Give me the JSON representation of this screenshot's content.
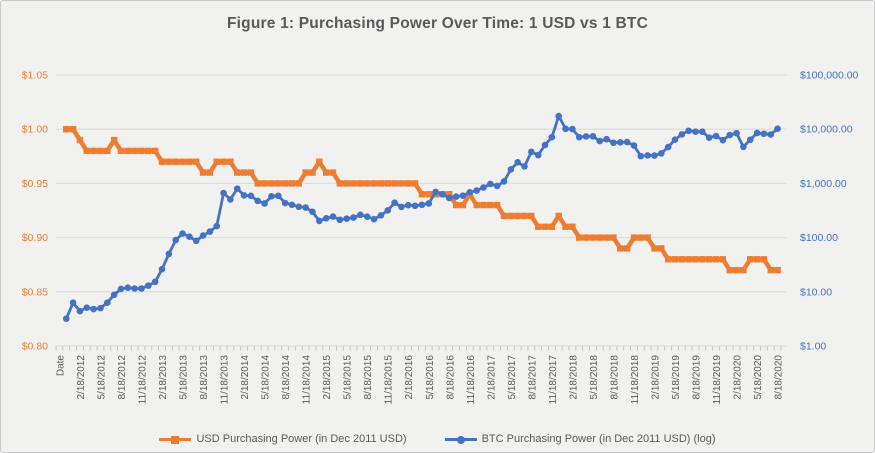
{
  "title": "Figure 1: Purchasing Power Over Time: 1 USD vs 1 BTC",
  "colors": {
    "background": "#f1f1f0",
    "gridline": "#dedede",
    "axis_line": "#bfbfbf",
    "title_text": "#595959",
    "axis_text": "#595959",
    "usd_series": "#ED7D31",
    "btc_series": "#4472C4"
  },
  "legend": {
    "items": [
      {
        "label": "USD Purchasing Power (in Dec 2011 USD)",
        "marker": "square",
        "color": "#ED7D31"
      },
      {
        "label": "BTC Purchasing Power (in Dec 2011 USD) (log)",
        "marker": "circle",
        "color": "#4472C4"
      }
    ]
  },
  "chart_data": {
    "type": "line",
    "title": "Figure 1: Purchasing Power Over Time: 1 USD vs 1 BTC",
    "x_first_label": "Date",
    "x_label_interval_months": 3,
    "x_labels_shown": [
      "Date",
      "2/18/2012",
      "5/18/2012",
      "8/18/2012",
      "11/18/2012",
      "2/18/2013",
      "5/18/2013",
      "8/18/2013",
      "11/18/2013",
      "2/18/2014",
      "5/18/2014",
      "8/18/2014",
      "11/18/2014",
      "2/18/2015",
      "5/18/2015",
      "8/18/2015",
      "11/18/2015",
      "2/18/2016",
      "5/18/2016",
      "8/18/2016",
      "11/18/2016",
      "2/18/2017",
      "5/18/2017",
      "8/18/2017",
      "11/18/2017",
      "2/18/2018",
      "5/18/2018",
      "8/18/2018",
      "11/18/2018",
      "2/18/2019",
      "5/18/2019",
      "8/18/2019",
      "11/18/2019",
      "2/18/2020",
      "5/18/2020",
      "8/18/2020"
    ],
    "dates": [
      "12/18/2011",
      "1/18/2012",
      "2/18/2012",
      "3/18/2012",
      "4/18/2012",
      "5/18/2012",
      "6/18/2012",
      "7/18/2012",
      "8/18/2012",
      "9/18/2012",
      "10/18/2012",
      "11/18/2012",
      "12/18/2012",
      "1/18/2013",
      "2/18/2013",
      "3/18/2013",
      "4/18/2013",
      "5/18/2013",
      "6/18/2013",
      "7/18/2013",
      "8/18/2013",
      "9/18/2013",
      "10/18/2013",
      "11/18/2013",
      "12/18/2013",
      "1/18/2014",
      "2/18/2014",
      "3/18/2014",
      "4/18/2014",
      "5/18/2014",
      "6/18/2014",
      "7/18/2014",
      "8/18/2014",
      "9/18/2014",
      "10/18/2014",
      "11/18/2014",
      "12/18/2014",
      "1/18/2015",
      "2/18/2015",
      "3/18/2015",
      "4/18/2015",
      "5/18/2015",
      "6/18/2015",
      "7/18/2015",
      "8/18/2015",
      "9/18/2015",
      "10/18/2015",
      "11/18/2015",
      "12/18/2015",
      "1/18/2016",
      "2/18/2016",
      "3/18/2016",
      "4/18/2016",
      "5/18/2016",
      "6/18/2016",
      "7/18/2016",
      "8/18/2016",
      "9/18/2016",
      "10/18/2016",
      "11/18/2016",
      "12/18/2016",
      "1/18/2017",
      "2/18/2017",
      "3/18/2017",
      "4/18/2017",
      "5/18/2017",
      "6/18/2017",
      "7/18/2017",
      "8/18/2017",
      "9/18/2017",
      "10/18/2017",
      "11/18/2017",
      "12/18/2017",
      "1/18/2018",
      "2/18/2018",
      "3/18/2018",
      "4/18/2018",
      "5/18/2018",
      "6/18/2018",
      "7/18/2018",
      "8/18/2018",
      "9/18/2018",
      "10/18/2018",
      "11/18/2018",
      "12/18/2018",
      "1/18/2019",
      "2/18/2019",
      "3/18/2019",
      "4/18/2019",
      "5/18/2019",
      "6/18/2019",
      "7/18/2019",
      "8/18/2019",
      "9/18/2019",
      "10/18/2019",
      "11/18/2019",
      "12/18/2019",
      "1/18/2020",
      "2/18/2020",
      "3/18/2020",
      "4/18/2020",
      "5/18/2020",
      "6/18/2020",
      "7/18/2020",
      "8/18/2020"
    ],
    "series": [
      {
        "name": "USD Purchasing Power (in Dec 2011 USD)",
        "axis": "left",
        "color": "#ED7D31",
        "marker": "square",
        "values": [
          1.0,
          1.0,
          0.99,
          0.98,
          0.98,
          0.98,
          0.98,
          0.99,
          0.98,
          0.98,
          0.98,
          0.98,
          0.98,
          0.98,
          0.97,
          0.97,
          0.97,
          0.97,
          0.97,
          0.97,
          0.96,
          0.96,
          0.97,
          0.97,
          0.97,
          0.96,
          0.96,
          0.96,
          0.95,
          0.95,
          0.95,
          0.95,
          0.95,
          0.95,
          0.95,
          0.96,
          0.96,
          0.97,
          0.96,
          0.96,
          0.95,
          0.95,
          0.95,
          0.95,
          0.95,
          0.95,
          0.95,
          0.95,
          0.95,
          0.95,
          0.95,
          0.95,
          0.94,
          0.94,
          0.94,
          0.94,
          0.94,
          0.93,
          0.93,
          0.94,
          0.93,
          0.93,
          0.93,
          0.93,
          0.92,
          0.92,
          0.92,
          0.92,
          0.92,
          0.91,
          0.91,
          0.91,
          0.92,
          0.91,
          0.91,
          0.9,
          0.9,
          0.9,
          0.9,
          0.9,
          0.9,
          0.89,
          0.89,
          0.9,
          0.9,
          0.9,
          0.89,
          0.89,
          0.88,
          0.88,
          0.88,
          0.88,
          0.88,
          0.88,
          0.88,
          0.88,
          0.88,
          0.87,
          0.87,
          0.87,
          0.88,
          0.88,
          0.88,
          0.87,
          0.87
        ]
      },
      {
        "name": "BTC Purchasing Power (in Dec 2011 USD) (log)",
        "axis": "right",
        "color": "#4472C4",
        "marker": "circle",
        "values": [
          3.2,
          6.3,
          4.4,
          5.1,
          4.8,
          5.0,
          6.3,
          8.8,
          11.3,
          11.9,
          11.5,
          11.5,
          13.0,
          15.3,
          26.1,
          50,
          90,
          119,
          104,
          87,
          109,
          129,
          163,
          664,
          506,
          801,
          600,
          591,
          476,
          426,
          577,
          592,
          434,
          403,
          371,
          359,
          299,
          203,
          227,
          244,
          213,
          224,
          234,
          263,
          243,
          219,
          257,
          318,
          440,
          369,
          396,
          387,
          403,
          426,
          697,
          631,
          538,
          571,
          595,
          686,
          739,
          840,
          976,
          898,
          1090,
          1808,
          2446,
          2059,
          3824,
          3326,
          5110,
          7125,
          17498,
          10185,
          10057,
          7135,
          7353,
          7398,
          6032,
          6550,
          5626,
          5720,
          5781,
          5005,
          3185,
          3280,
          3265,
          3574,
          4679,
          6400,
          8002,
          9357,
          9000,
          9007,
          6992,
          7468,
          6281,
          7794,
          8467,
          4719,
          6388,
          8516,
          8238,
          7982,
          10213
        ]
      }
    ],
    "left_axis": {
      "scale": "linear",
      "range": [
        0.8,
        1.05
      ],
      "tick_labels": [
        "$1.05",
        "$1.00",
        "$0.95",
        "$0.90",
        "$0.85",
        "$0.80"
      ],
      "tick_values": [
        1.05,
        1.0,
        0.95,
        0.9,
        0.85,
        0.8
      ]
    },
    "right_axis": {
      "scale": "log",
      "range": [
        1,
        100000
      ],
      "tick_labels": [
        "$100,000.00",
        "$10,000.00",
        "$1,000.00",
        "$100.00",
        "$10.00",
        "$1.00"
      ],
      "tick_values": [
        100000,
        10000,
        1000,
        100,
        10,
        1
      ]
    },
    "grid": "horizontal-only",
    "legend_position": "bottom"
  }
}
